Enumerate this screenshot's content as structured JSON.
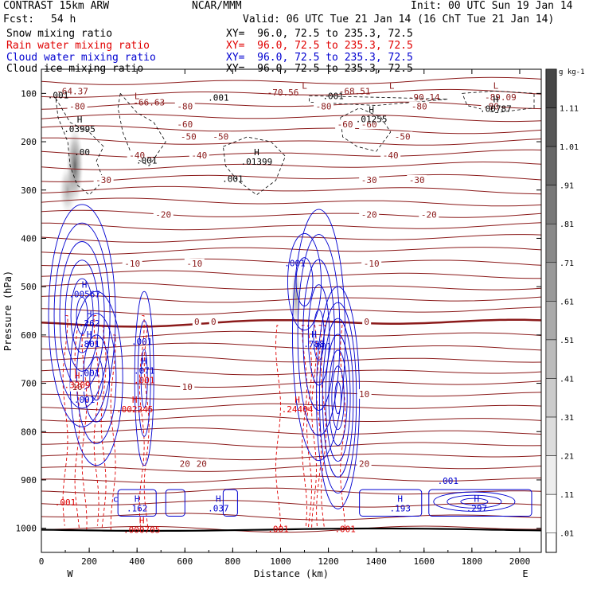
{
  "header": {
    "model": "CONTRAST 15km ARW",
    "center": "NCAR/MMM",
    "init": "Init: 00 UTC Sun 19 Jan 14",
    "fcst_label": "Fcst:",
    "fcst_value": "54 h",
    "valid": "Valid: 06 UTC Tue 21 Jan 14 (16 ChT Tue 21 Jan 14)",
    "fields": [
      {
        "name": "Snow mixing ratio",
        "xy": "XY=  96.0, 72.5 to 235.3, 72.5",
        "color": "#000000"
      },
      {
        "name": "Rain water mixing ratio",
        "xy": "XY=  96.0, 72.5 to 235.3, 72.5",
        "color": "#e00000"
      },
      {
        "name": "Cloud water mixing ratio",
        "xy": "XY=  96.0, 72.5 to 235.3, 72.5",
        "color": "#0000d0"
      },
      {
        "name": "Cloud ice mixing ratio",
        "xy": "XY=  96.0, 72.5 to 235.3, 72.5",
        "color": "#000000"
      }
    ]
  },
  "chart_data": {
    "type": "heatmap",
    "xlabel": "Distance (km)",
    "ylabel": "Pressure (hPa)",
    "xlim": [
      0,
      2090
    ],
    "ylim": [
      1050,
      50
    ],
    "x_ticks": [
      0,
      200,
      400,
      600,
      800,
      1000,
      1200,
      1400,
      1600,
      1800,
      2000
    ],
    "y_ticks": [
      100,
      200,
      300,
      400,
      500,
      600,
      700,
      800,
      900,
      1000
    ],
    "x_end_labels": {
      "left": "W",
      "right": "E"
    },
    "colorbar": {
      "unit": "g kg-1",
      "labels": [
        "1.11",
        "1.01",
        ".91",
        ".81",
        ".71",
        ".61",
        ".51",
        ".41",
        ".31",
        ".21",
        ".11",
        ".01"
      ],
      "values": [
        1.11,
        1.01,
        0.91,
        0.81,
        0.71,
        0.61,
        0.51,
        0.41,
        0.31,
        0.21,
        0.11,
        0.01
      ]
    },
    "temperature_contours": {
      "color": "#8b1a1a",
      "zero_label": "0",
      "labels": [
        {
          "text": "-64.37",
          "x": 130,
          "p": 95,
          "kind": "min_label"
        },
        {
          "text": "-66.63",
          "x": 450,
          "p": 118,
          "kind": "min_label"
        },
        {
          "text": "-70.56",
          "x": 1010,
          "p": 98,
          "kind": "min_label"
        },
        {
          "text": "-68.51",
          "x": 1310,
          "p": 95,
          "kind": "min_label"
        },
        {
          "text": "-90.14",
          "x": 1600,
          "p": 108,
          "kind": "min_label"
        },
        {
          "text": "-89.09",
          "x": 1920,
          "p": 108,
          "kind": "min_label"
        },
        {
          "text": "-80",
          "x": 150,
          "p": 127,
          "kind": "line"
        },
        {
          "text": "-80",
          "x": 600,
          "p": 127,
          "kind": "line"
        },
        {
          "text": "-80",
          "x": 1180,
          "p": 127,
          "kind": "line"
        },
        {
          "text": "-80",
          "x": 1580,
          "p": 127,
          "kind": "line"
        },
        {
          "text": "-80",
          "x": 1880,
          "p": 127,
          "kind": "line"
        },
        {
          "text": "-60",
          "x": 600,
          "p": 164,
          "kind": "line"
        },
        {
          "text": "-60",
          "x": 1270,
          "p": 164,
          "kind": "line"
        },
        {
          "text": "-60",
          "x": 1370,
          "p": 164,
          "kind": "line"
        },
        {
          "text": "-50",
          "x": 615,
          "p": 189,
          "kind": "line"
        },
        {
          "text": "-50",
          "x": 750,
          "p": 189,
          "kind": "line"
        },
        {
          "text": "-50",
          "x": 1510,
          "p": 189,
          "kind": "line"
        },
        {
          "text": "-40",
          "x": 400,
          "p": 228,
          "kind": "line"
        },
        {
          "text": "-40",
          "x": 660,
          "p": 228,
          "kind": "line"
        },
        {
          "text": "-40",
          "x": 1460,
          "p": 228,
          "kind": "line"
        },
        {
          "text": "-30",
          "x": 260,
          "p": 279,
          "kind": "line"
        },
        {
          "text": "-30",
          "x": 1370,
          "p": 279,
          "kind": "line"
        },
        {
          "text": "-30",
          "x": 1570,
          "p": 279,
          "kind": "line"
        },
        {
          "text": "-20",
          "x": 510,
          "p": 351,
          "kind": "line"
        },
        {
          "text": "-20",
          "x": 1370,
          "p": 351,
          "kind": "line"
        },
        {
          "text": "-20",
          "x": 1620,
          "p": 351,
          "kind": "line"
        },
        {
          "text": "-10",
          "x": 380,
          "p": 452,
          "kind": "line"
        },
        {
          "text": "-10",
          "x": 640,
          "p": 452,
          "kind": "line"
        },
        {
          "text": "-10",
          "x": 1380,
          "p": 452,
          "kind": "line"
        },
        {
          "text": "0",
          "x": 650,
          "p": 572,
          "kind": "line"
        },
        {
          "text": "0",
          "x": 720,
          "p": 572,
          "kind": "line"
        },
        {
          "text": "0",
          "x": 1360,
          "p": 572,
          "kind": "line"
        },
        {
          "text": "10",
          "x": 150,
          "p": 707,
          "kind": "line"
        },
        {
          "text": "10",
          "x": 610,
          "p": 707,
          "kind": "line"
        },
        {
          "text": "10",
          "x": 1350,
          "p": 722,
          "kind": "line"
        },
        {
          "text": "20",
          "x": 600,
          "p": 866,
          "kind": "line"
        },
        {
          "text": "20",
          "x": 670,
          "p": 866,
          "kind": "line"
        },
        {
          "text": "20",
          "x": 1350,
          "p": 866,
          "kind": "line"
        }
      ]
    },
    "snow_shading": [
      {
        "x": 140,
        "p": 250,
        "rx": 35,
        "rp": 80,
        "peak": 0.9
      },
      {
        "x": 110,
        "p": 300,
        "rx": 35,
        "rp": 50,
        "peak": 0.5
      },
      {
        "x": 1065,
        "p": 520,
        "rx": 20,
        "rp": 60,
        "peak": 0.55
      }
    ],
    "extrema_labels": [
      {
        "text": "H",
        "value": ".03995",
        "x": 160,
        "p": 160,
        "color": "#000000"
      },
      {
        "text": "L",
        "value": "",
        "x": 400,
        "p": 112,
        "color": "#8b1a1a"
      },
      {
        "text": "L",
        "value": "",
        "x": 1100,
        "p": 90,
        "color": "#8b1a1a"
      },
      {
        "text": "L",
        "value": "",
        "x": 1465,
        "p": 90,
        "color": "#8b1a1a"
      },
      {
        "text": "L",
        "value": "",
        "x": 1900,
        "p": 90,
        "color": "#8b1a1a"
      },
      {
        "text": "H",
        "value": ".01255",
        "x": 1380,
        "p": 140,
        "color": "#000000"
      },
      {
        "text": "H",
        "value": ".00787",
        "x": 1900,
        "p": 118,
        "color": "#000000"
      },
      {
        "text": "H",
        "value": ".01399",
        "x": 900,
        "p": 228,
        "color": "#000000"
      },
      {
        "text": "H",
        "value": ".00567",
        "x": 180,
        "p": 502,
        "color": "#0000d0"
      },
      {
        "text": "H",
        "value": ".262",
        "x": 200,
        "p": 562,
        "color": "#0000d0"
      },
      {
        "text": "H",
        "value": ".801",
        "x": 200,
        "p": 605,
        "color": "#0000d0"
      },
      {
        "text": "H",
        "value": ".071",
        "x": 430,
        "p": 660,
        "color": "#0000d0"
      },
      {
        "text": "H",
        "value": ".3209",
        "x": 150,
        "p": 690,
        "color": "#e00000"
      },
      {
        "text": "H",
        "value": ".002245",
        "x": 390,
        "p": 740,
        "color": "#e00000"
      },
      {
        "text": "H",
        "value": ".788",
        "x": 1140,
        "p": 605,
        "color": "#0000d0"
      },
      {
        "text": "H",
        "value": ".24404",
        "x": 1070,
        "p": 740,
        "color": "#e00000"
      },
      {
        "text": "H",
        "value": ".162",
        "x": 400,
        "p": 945,
        "color": "#0000d0"
      },
      {
        "text": "H",
        "value": ".037",
        "x": 740,
        "p": 945,
        "color": "#0000d0"
      },
      {
        "text": "H",
        "value": ".000705",
        "x": 420,
        "p": 990,
        "color": "#e00000"
      },
      {
        "text": "H",
        "value": ".193",
        "x": 1500,
        "p": 945,
        "color": "#0000d0"
      },
      {
        "text": "H",
        "value": ".297",
        "x": 1820,
        "p": 945,
        "color": "#0000d0"
      }
    ],
    "value_labels": [
      {
        "text": ".001",
        "x": 70,
        "p": 110,
        "color": "#000000"
      },
      {
        "text": ".001",
        "x": 440,
        "p": 245,
        "color": "#000000"
      },
      {
        "text": ".001",
        "x": 740,
        "p": 115,
        "color": "#000000"
      },
      {
        "text": ".001",
        "x": 1220,
        "p": 112,
        "color": "#000000"
      },
      {
        "text": ".001",
        "x": 800,
        "p": 283,
        "color": "#000000"
      },
      {
        "text": ".00",
        "x": 170,
        "p": 228,
        "color": "#000000"
      },
      {
        "text": ".001",
        "x": 1060,
        "p": 458,
        "color": "#0000d0"
      },
      {
        "text": ".001",
        "x": 420,
        "p": 620,
        "color": "#0000d0"
      },
      {
        "text": ".001",
        "x": 430,
        "p": 700,
        "color": "#e00000"
      },
      {
        "text": ".001",
        "x": 180,
        "p": 740,
        "color": "#0000d0"
      },
      {
        "text": ".001",
        "x": 200,
        "p": 685,
        "color": "#0000d0"
      },
      {
        "text": ".001",
        "x": 1170,
        "p": 630,
        "color": "#0000d0"
      },
      {
        "text": ".001",
        "x": 100,
        "p": 953,
        "color": "#e00000"
      },
      {
        "text": ".001",
        "x": 990,
        "p": 1008,
        "color": "#e00000"
      },
      {
        "text": ".001",
        "x": 1270,
        "p": 1008,
        "color": "#e00000"
      },
      {
        "text": ".001",
        "x": 1700,
        "p": 908,
        "color": "#0000d0"
      },
      {
        "text": "c",
        "x": 310,
        "p": 945,
        "color": "#0000d0"
      }
    ]
  }
}
